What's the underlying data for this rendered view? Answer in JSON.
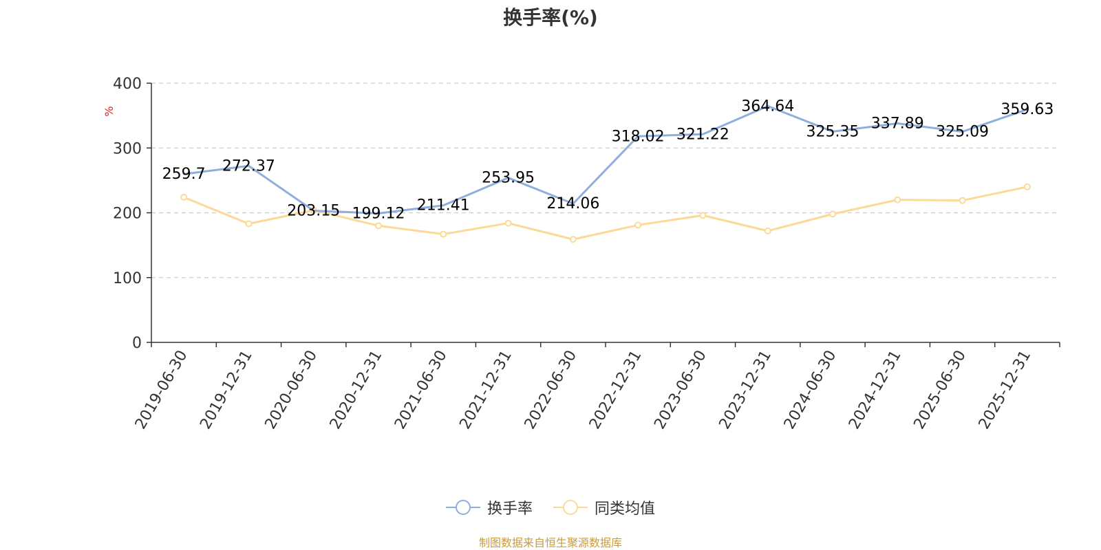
{
  "chart_data": {
    "type": "line",
    "title": "换手率(%)",
    "ylabel": "%",
    "xlabel": "",
    "ylim": [
      0,
      400
    ],
    "yticks": [
      "0",
      "100",
      "200",
      "300",
      "400"
    ],
    "categories": [
      "2019-06-30",
      "2019-12-31",
      "2020-06-30",
      "2020-12-31",
      "2021-06-30",
      "2021-12-31",
      "2022-06-30",
      "2022-12-31",
      "2023-06-30",
      "2023-12-31",
      "2024-06-30",
      "2024-12-31",
      "2025-06-30",
      "2025-12-31"
    ],
    "series": [
      {
        "name": "换手率",
        "color": "#8eaedc",
        "values": [
          259.7,
          272.37,
          203.15,
          199.12,
          211.41,
          253.95,
          214.06,
          318.02,
          321.22,
          364.64,
          325.35,
          337.89,
          325.09,
          359.63
        ],
        "labels": [
          "259.7",
          "272.37",
          "203.15",
          "199.12",
          "211.41",
          "253.95",
          "214.06",
          "318.02",
          "321.22",
          "364.64",
          "325.35",
          "337.89",
          "325.09",
          "359.63"
        ]
      },
      {
        "name": "同类均值",
        "color": "#fcd995",
        "values": [
          224,
          183,
          204,
          180,
          167,
          184,
          159,
          181,
          196,
          172,
          198,
          220,
          219,
          240
        ]
      }
    ],
    "grid": "dashed horizontal",
    "legend_position": "bottom-center"
  },
  "source_note": "制图数据来自恒生聚源数据库"
}
